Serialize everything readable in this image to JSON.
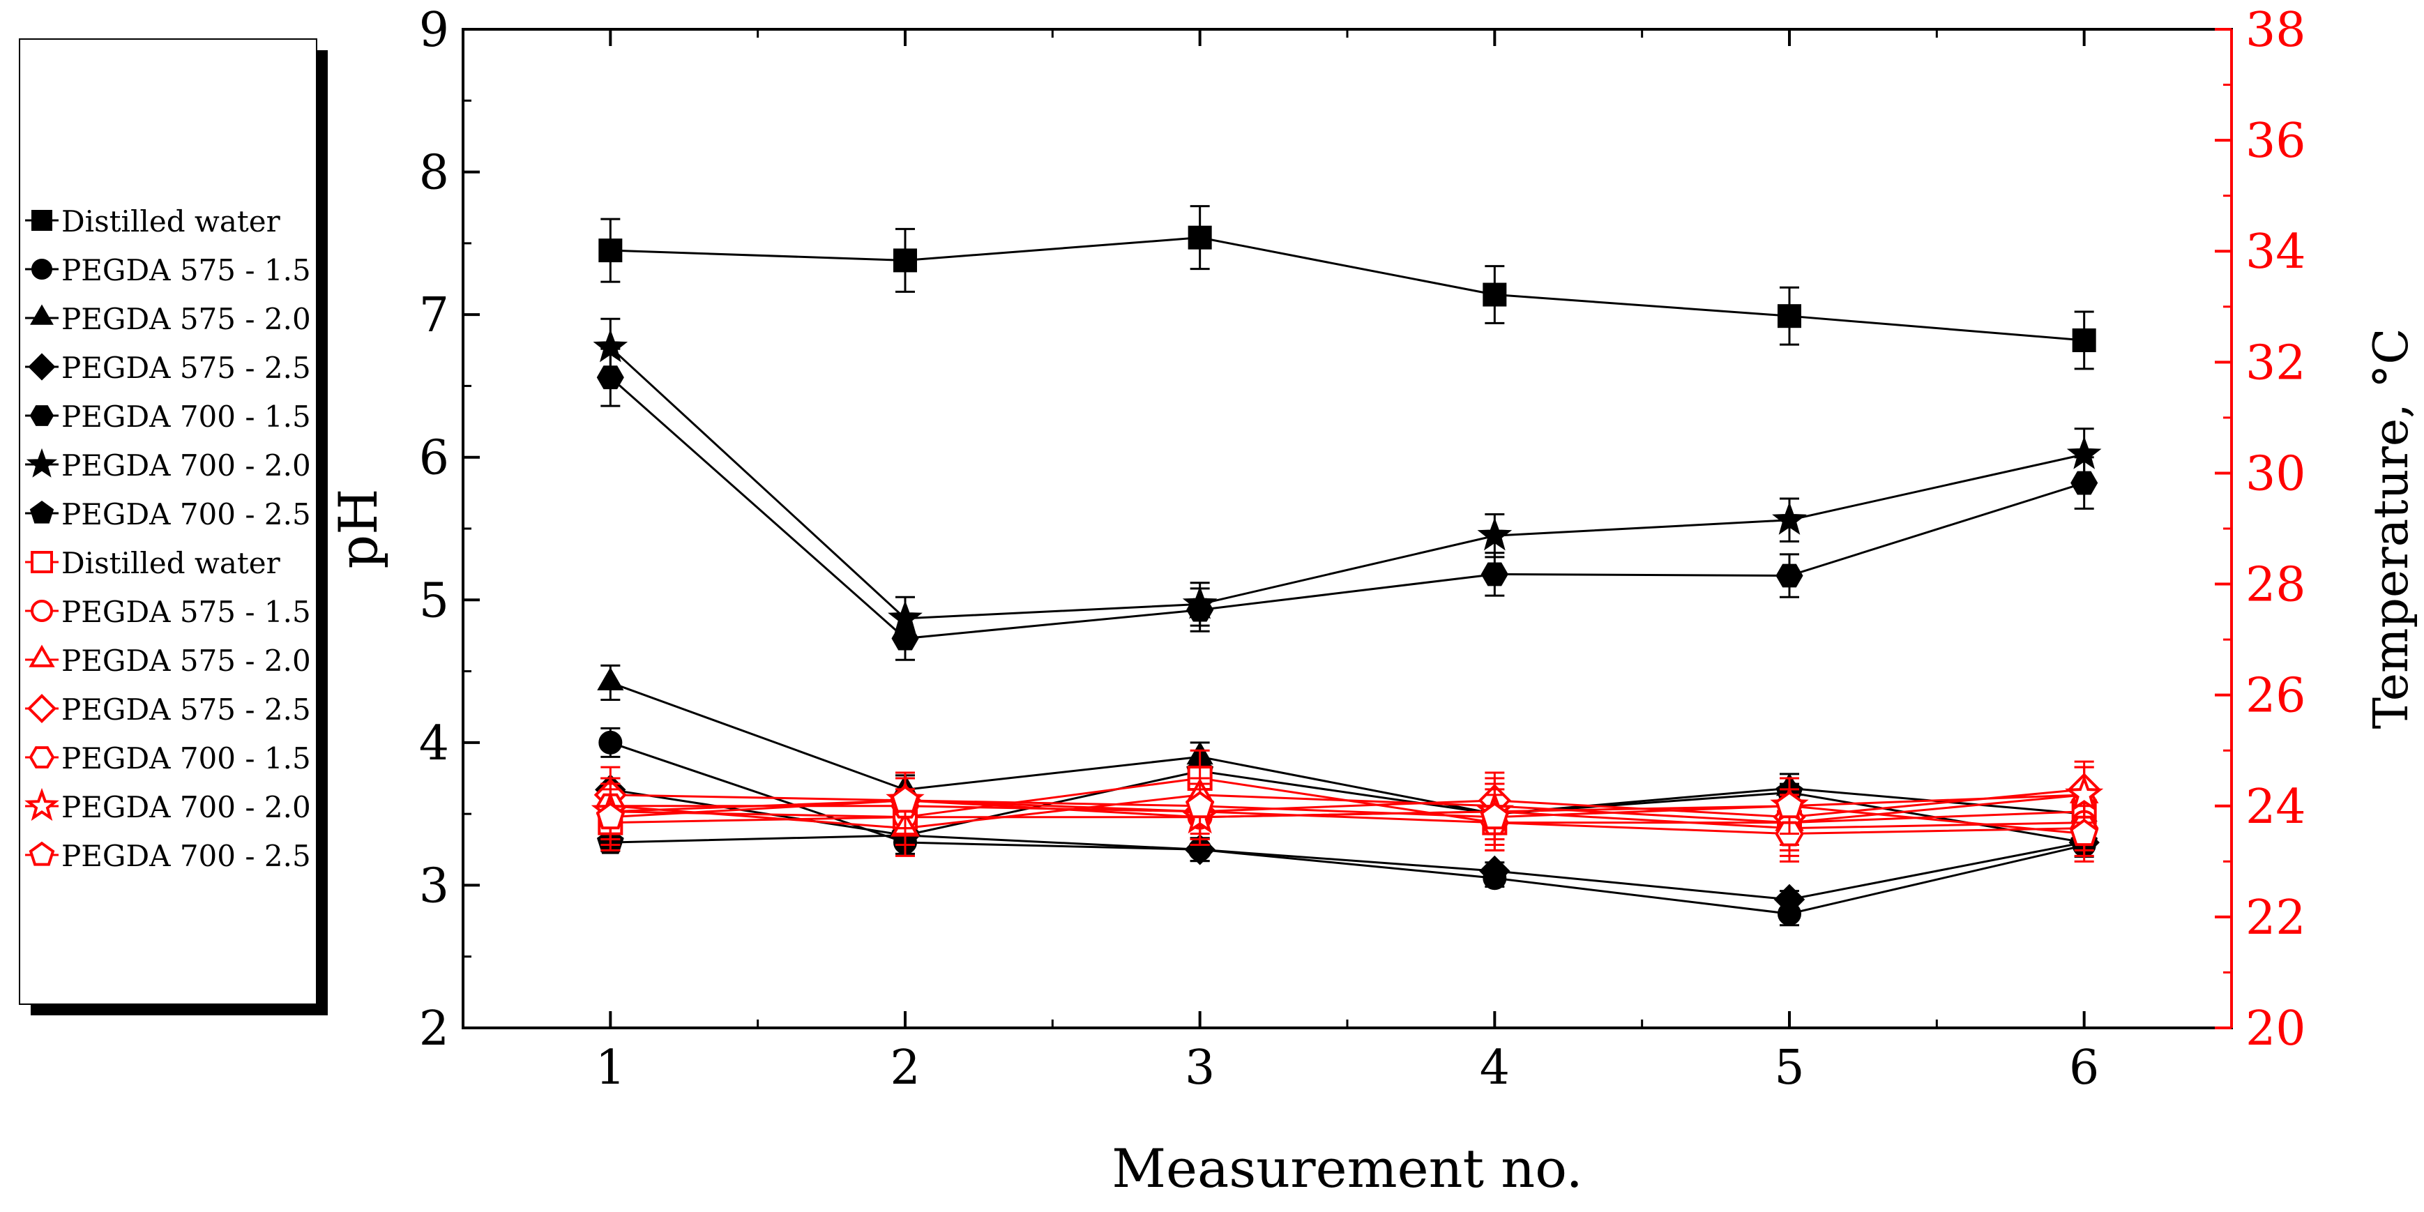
{
  "chart_data": {
    "type": "line",
    "xlabel": "Measurement no.",
    "ylabel": "pH",
    "y2label": "Temperature, °C",
    "x": [
      1,
      2,
      3,
      4,
      5,
      6
    ],
    "xlim": [
      0.5,
      6.5
    ],
    "ylim": [
      2,
      9
    ],
    "y2lim": [
      20,
      38
    ],
    "xticks": [
      "1",
      "2",
      "3",
      "4",
      "5",
      "6"
    ],
    "yticks": [
      "2",
      "3",
      "4",
      "5",
      "6",
      "7",
      "8",
      "9"
    ],
    "y2ticks": [
      "20",
      "22",
      "24",
      "26",
      "28",
      "30",
      "32",
      "34",
      "36",
      "38"
    ],
    "axis_colors": {
      "left": "#000000",
      "right": "#ff0000"
    },
    "legend_position": "left, outside plot",
    "series": [
      {
        "name": "Distilled water",
        "axis": "left",
        "color": "#000000",
        "marker": "square",
        "filled": true,
        "values": [
          7.45,
          7.38,
          7.54,
          7.14,
          6.99,
          6.82
        ],
        "errors": [
          0.22,
          0.22,
          0.22,
          0.2,
          0.2,
          0.2
        ]
      },
      {
        "name": "PEGDA 575 - 1.5",
        "axis": "left",
        "color": "#000000",
        "marker": "circle",
        "filled": true,
        "values": [
          4.0,
          3.3,
          3.25,
          3.05,
          2.8,
          3.28
        ],
        "errors": [
          0.1,
          0.08,
          0.08,
          0.06,
          0.08,
          0.08
        ]
      },
      {
        "name": "PEGDA 575 - 2.0",
        "axis": "left",
        "color": "#000000",
        "marker": "triangle",
        "filled": true,
        "values": [
          4.42,
          3.67,
          3.9,
          3.5,
          3.68,
          3.5
        ],
        "errors": [
          0.12,
          0.1,
          0.1,
          0.08,
          0.1,
          0.1
        ]
      },
      {
        "name": "PEGDA 575 - 2.5",
        "axis": "left",
        "color": "#000000",
        "marker": "diamond",
        "filled": true,
        "values": [
          3.67,
          3.35,
          3.25,
          3.1,
          2.9,
          3.3
        ],
        "errors": [
          0.08,
          0.08,
          0.08,
          0.06,
          0.06,
          0.06
        ]
      },
      {
        "name": "PEGDA 700 - 1.5",
        "axis": "left",
        "color": "#000000",
        "marker": "hexagon",
        "filled": true,
        "values": [
          6.56,
          4.73,
          4.93,
          5.18,
          5.17,
          5.82
        ],
        "errors": [
          0.2,
          0.15,
          0.15,
          0.15,
          0.15,
          0.18
        ]
      },
      {
        "name": "PEGDA 700 - 2.0",
        "axis": "left",
        "color": "#000000",
        "marker": "star",
        "filled": true,
        "values": [
          6.77,
          4.87,
          4.97,
          5.45,
          5.56,
          6.02
        ],
        "errors": [
          0.2,
          0.15,
          0.15,
          0.15,
          0.15,
          0.18
        ]
      },
      {
        "name": "PEGDA 700 - 2.5",
        "axis": "left",
        "color": "#000000",
        "marker": "pentagon",
        "filled": true,
        "values": [
          3.3,
          3.35,
          3.8,
          3.5,
          3.65,
          3.3
        ],
        "errors": [
          0.06,
          0.06,
          0.06,
          0.06,
          0.06,
          0.06
        ]
      },
      {
        "name": "Distilled water",
        "axis": "right",
        "color": "#ff0000",
        "marker": "square",
        "filled": false,
        "values": [
          23.7,
          23.8,
          24.5,
          23.7,
          23.7,
          23.9
        ],
        "errors": [
          0.5,
          0.5,
          0.5,
          0.5,
          0.5,
          0.5
        ]
      },
      {
        "name": "PEGDA 575 - 1.5",
        "axis": "right",
        "color": "#ff0000",
        "marker": "circle",
        "filled": false,
        "values": [
          23.9,
          23.8,
          23.8,
          23.9,
          23.6,
          23.7
        ],
        "errors": [
          0.5,
          0.5,
          0.5,
          0.5,
          0.5,
          0.5
        ]
      },
      {
        "name": "PEGDA 575 - 2.0",
        "axis": "right",
        "color": "#ff0000",
        "marker": "triangle",
        "filled": false,
        "values": [
          24.0,
          23.6,
          24.2,
          24.0,
          23.7,
          24.2
        ],
        "errors": [
          0.5,
          0.5,
          0.5,
          0.5,
          0.5,
          0.5
        ]
      },
      {
        "name": "PEGDA 575 - 2.5",
        "axis": "right",
        "color": "#ff0000",
        "marker": "diamond",
        "filled": false,
        "values": [
          24.2,
          24.1,
          23.9,
          24.1,
          23.8,
          24.3
        ],
        "errors": [
          0.5,
          0.5,
          0.5,
          0.5,
          0.5,
          0.5
        ]
      },
      {
        "name": "PEGDA 700 - 1.5",
        "axis": "right",
        "color": "#ff0000",
        "marker": "hexagon",
        "filled": false,
        "values": [
          24.0,
          24.0,
          23.9,
          23.7,
          23.5,
          23.6
        ],
        "errors": [
          0.5,
          0.5,
          0.5,
          0.5,
          0.5,
          0.5
        ]
      },
      {
        "name": "PEGDA 700 - 2.0",
        "axis": "right",
        "color": "#ff0000",
        "marker": "star",
        "filled": false,
        "values": [
          23.9,
          24.1,
          23.8,
          23.9,
          24.0,
          24.2
        ],
        "errors": [
          0.5,
          0.5,
          0.5,
          0.5,
          0.5,
          0.5
        ]
      },
      {
        "name": "PEGDA 700 - 2.5",
        "axis": "right",
        "color": "#ff0000",
        "marker": "pentagon",
        "filled": false,
        "values": [
          23.8,
          24.1,
          24.0,
          23.8,
          24.0,
          23.5
        ],
        "errors": [
          0.5,
          0.5,
          0.5,
          0.5,
          0.5,
          0.5
        ]
      }
    ]
  }
}
